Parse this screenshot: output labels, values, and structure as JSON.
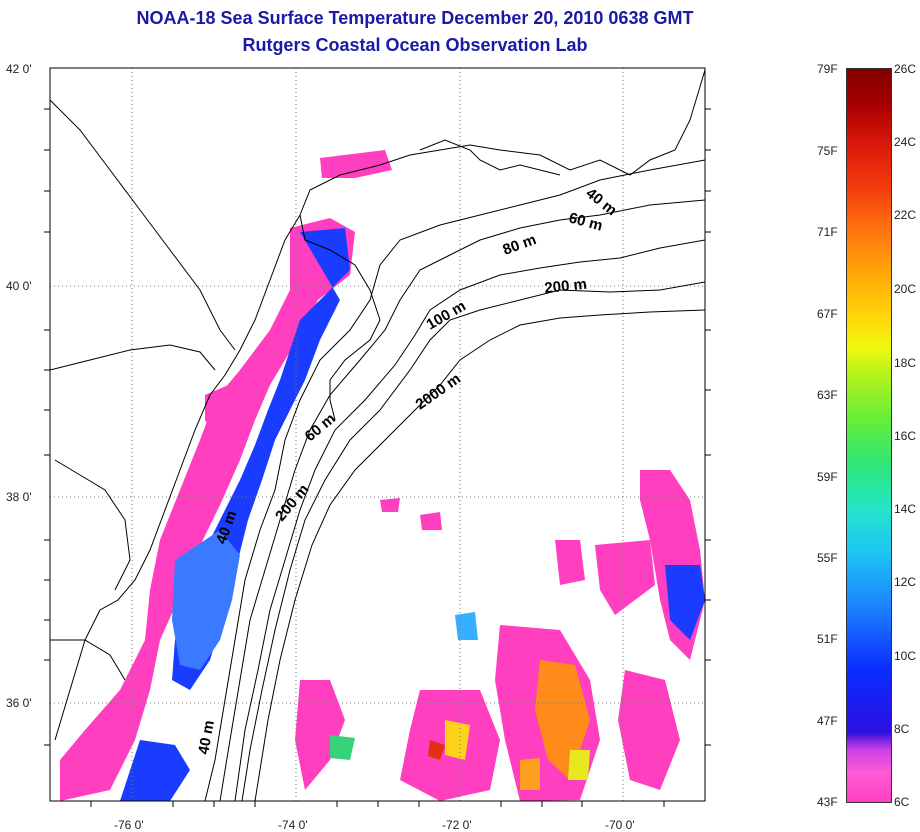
{
  "title_line1": "NOAA-18 Sea Surface Temperature December 20, 2010 0638 GMT",
  "title_line2": "Rutgers Coastal Ocean Observation Lab",
  "lat_labels": [
    "42 0'",
    "40 0'",
    "38 0'",
    "36 0'"
  ],
  "lon_labels": [
    "-76 0'",
    "-74 0'",
    "-72 0'",
    "-70 0'"
  ],
  "isobath_labels": [
    "40 m",
    "60 m",
    "80 m",
    "200 m",
    "100 m",
    "2000 m",
    "60 m",
    "200 m",
    "40 m",
    "40 m"
  ],
  "colorbar_f": [
    "79F",
    "75F",
    "71F",
    "67F",
    "63F",
    "59F",
    "55F",
    "51F",
    "47F",
    "43F"
  ],
  "colorbar_c": [
    "26C",
    "24C",
    "22C",
    "20C",
    "18C",
    "16C",
    "14C",
    "12C",
    "10C",
    "8C",
    "6C"
  ],
  "colors": {
    "title": "#1a1aa6",
    "cold": "#ff3fbf",
    "cool": "#1a3cff",
    "warm": "#ff6a00"
  }
}
